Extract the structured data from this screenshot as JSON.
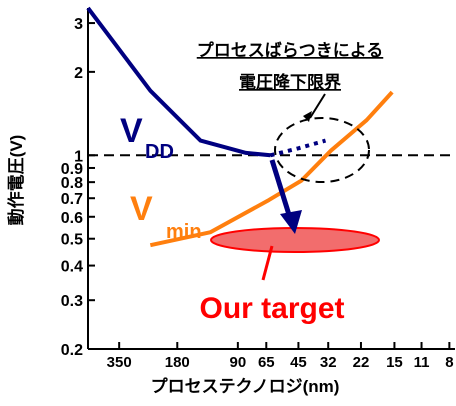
{
  "chart_data": {
    "type": "line",
    "y_label": "動作電圧(V)",
    "x_label": "プロセステクノロジ(nm)",
    "x_log": true,
    "y_log": true,
    "xlim": [
      500,
      7.5
    ],
    "ylim": [
      0.2,
      3.4
    ],
    "xticks": [
      350,
      180,
      90,
      65,
      45,
      32,
      22,
      15,
      11,
      8
    ],
    "yticks": [
      0.2,
      0.3,
      0.4,
      0.5,
      0.6,
      0.7,
      0.8,
      0.9,
      1,
      2,
      3
    ],
    "reference_line": 1,
    "series": [
      {
        "name": "V",
        "subscript": "DD",
        "color": "#000080",
        "x": [
          500,
          245,
          138,
          82,
          62
        ],
        "values": [
          3.4,
          1.71,
          1.13,
          1.02,
          1.0
        ],
        "projection": {
          "x": [
            62,
            45,
            33
          ],
          "values": [
            1.0,
            1.06,
            1.13
          ]
        }
      },
      {
        "name": "V",
        "subscript": "min",
        "color": "#ff7f0e",
        "x": [
          245,
          123,
          63,
          43.5,
          31,
          20.6,
          15.4
        ],
        "values": [
          0.474,
          0.528,
          0.69,
          0.81,
          1.04,
          1.34,
          1.69
        ]
      }
    ],
    "annotations": {
      "limit": [
        "プロセスばらつきによる",
        "電圧降下限界"
      ],
      "target": "Our target"
    }
  }
}
